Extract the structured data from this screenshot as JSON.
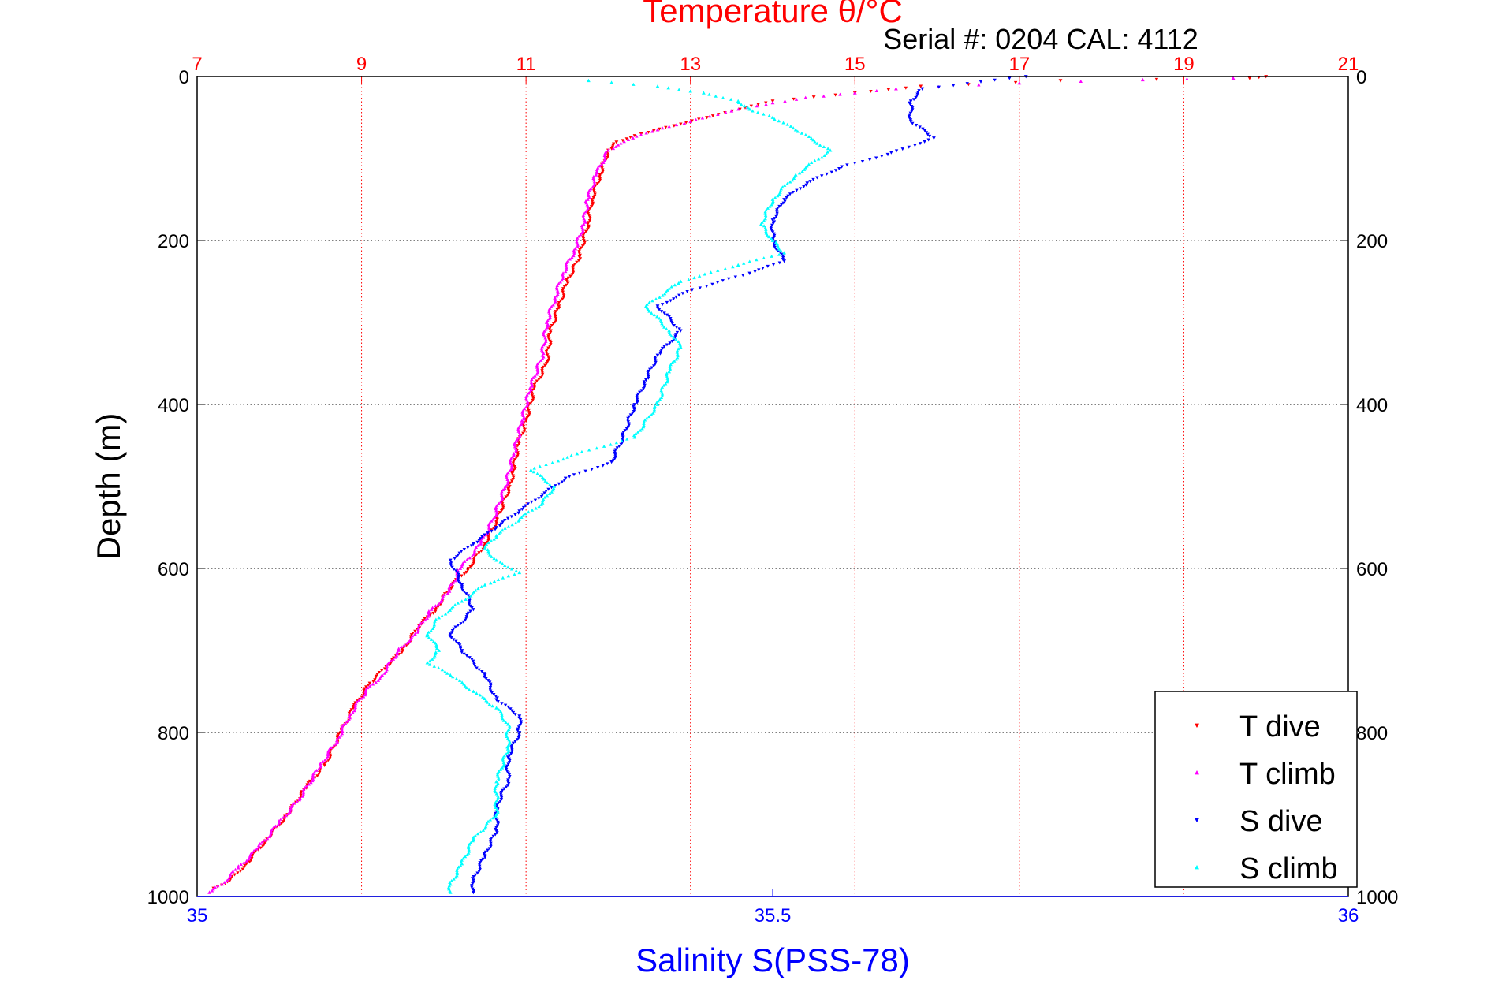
{
  "chart_data": {
    "type": "scatter",
    "title": "Temperature θ/°C",
    "subtitle": "Serial #: 0204  CAL: 4112",
    "ylabel": "Depth (m)",
    "xlabel_bottom": "Salinity S(PSS-78)",
    "ylim": [
      1000,
      0
    ],
    "y_ticks": [
      "0",
      "200",
      "400",
      "600",
      "800",
      "1000"
    ],
    "x_top": {
      "label": "Temperature θ/°C",
      "range": [
        7,
        21
      ],
      "ticks": [
        "7",
        "9",
        "11",
        "13",
        "15",
        "17",
        "19",
        "21"
      ]
    },
    "x_bottom": {
      "label": "Salinity S(PSS-78)",
      "range": [
        35,
        36
      ],
      "ticks": [
        "35",
        "35.5",
        "36"
      ]
    },
    "grid": true,
    "legend": "bottom-right",
    "colors": {
      "t_axis": "#ff0000",
      "s_axis": "#0000ff",
      "grid": "#000000",
      "t_grid": "#ff0000"
    },
    "series": [
      {
        "name": "T dive",
        "axis": "top",
        "color": "#ff0000",
        "marker": "triangle-down",
        "points": [
          [
            20.0,
            0
          ],
          [
            19.8,
            2
          ],
          [
            17.5,
            5
          ],
          [
            15.8,
            12
          ],
          [
            15.0,
            20
          ],
          [
            14.5,
            25
          ],
          [
            14.0,
            30
          ],
          [
            13.6,
            40
          ],
          [
            13.2,
            50
          ],
          [
            12.8,
            60
          ],
          [
            12.4,
            70
          ],
          [
            12.1,
            80
          ],
          [
            12.0,
            90
          ],
          [
            11.9,
            120
          ],
          [
            11.8,
            150
          ],
          [
            11.75,
            180
          ],
          [
            11.7,
            200
          ],
          [
            11.65,
            220
          ],
          [
            11.5,
            250
          ],
          [
            11.4,
            280
          ],
          [
            11.3,
            310
          ],
          [
            11.25,
            350
          ],
          [
            11.1,
            380
          ],
          [
            11.0,
            420
          ],
          [
            10.9,
            450
          ],
          [
            10.85,
            480
          ],
          [
            10.8,
            500
          ],
          [
            10.65,
            540
          ],
          [
            10.5,
            570
          ],
          [
            10.3,
            600
          ],
          [
            10.1,
            620
          ],
          [
            9.9,
            650
          ],
          [
            9.7,
            670
          ],
          [
            9.5,
            700
          ],
          [
            9.3,
            720
          ],
          [
            9.1,
            740
          ],
          [
            8.9,
            770
          ],
          [
            8.75,
            800
          ],
          [
            8.55,
            840
          ],
          [
            8.3,
            870
          ],
          [
            8.1,
            900
          ],
          [
            7.85,
            930
          ],
          [
            7.6,
            960
          ],
          [
            7.4,
            980
          ],
          [
            7.2,
            990
          ]
        ]
      },
      {
        "name": "T climb",
        "axis": "top",
        "color": "#ff00ff",
        "marker": "triangle-up",
        "points": [
          [
            19.6,
            2
          ],
          [
            18.5,
            4
          ],
          [
            17.0,
            8
          ],
          [
            15.5,
            15
          ],
          [
            15.0,
            20
          ],
          [
            14.4,
            26
          ],
          [
            14.0,
            32
          ],
          [
            13.5,
            42
          ],
          [
            13.0,
            55
          ],
          [
            12.6,
            65
          ],
          [
            12.3,
            75
          ],
          [
            12.0,
            90
          ],
          [
            11.85,
            120
          ],
          [
            11.75,
            150
          ],
          [
            11.7,
            180
          ],
          [
            11.6,
            210
          ],
          [
            11.45,
            240
          ],
          [
            11.35,
            270
          ],
          [
            11.25,
            300
          ],
          [
            11.2,
            340
          ],
          [
            11.05,
            380
          ],
          [
            10.95,
            420
          ],
          [
            10.85,
            460
          ],
          [
            10.75,
            500
          ],
          [
            10.6,
            540
          ],
          [
            10.45,
            570
          ],
          [
            10.2,
            600
          ],
          [
            10.05,
            630
          ],
          [
            9.85,
            650
          ],
          [
            9.65,
            680
          ],
          [
            9.45,
            700
          ],
          [
            9.25,
            730
          ],
          [
            9.05,
            750
          ],
          [
            8.85,
            780
          ],
          [
            8.7,
            810
          ],
          [
            8.5,
            840
          ],
          [
            8.25,
            880
          ],
          [
            8.0,
            910
          ],
          [
            7.75,
            940
          ],
          [
            7.5,
            965
          ],
          [
            7.3,
            985
          ],
          [
            7.15,
            995
          ]
        ]
      },
      {
        "name": "S dive",
        "axis": "bottom",
        "color": "#0000ff",
        "marker": "triangle-down",
        "points": [
          [
            35.72,
            0
          ],
          [
            35.63,
            15
          ],
          [
            35.62,
            30
          ],
          [
            35.62,
            55
          ],
          [
            35.64,
            75
          ],
          [
            35.6,
            95
          ],
          [
            35.56,
            110
          ],
          [
            35.53,
            130
          ],
          [
            35.51,
            150
          ],
          [
            35.5,
            175
          ],
          [
            35.5,
            200
          ],
          [
            35.51,
            225
          ],
          [
            35.48,
            240
          ],
          [
            35.43,
            260
          ],
          [
            35.4,
            280
          ],
          [
            35.42,
            310
          ],
          [
            35.4,
            340
          ],
          [
            35.39,
            370
          ],
          [
            35.38,
            400
          ],
          [
            35.37,
            440
          ],
          [
            35.36,
            470
          ],
          [
            35.32,
            490
          ],
          [
            35.3,
            510
          ],
          [
            35.28,
            530
          ],
          [
            35.26,
            550
          ],
          [
            35.24,
            570
          ],
          [
            35.22,
            590
          ],
          [
            35.23,
            620
          ],
          [
            35.24,
            650
          ],
          [
            35.22,
            680
          ],
          [
            35.23,
            700
          ],
          [
            35.25,
            730
          ],
          [
            35.26,
            760
          ],
          [
            35.28,
            780
          ],
          [
            35.28,
            800
          ],
          [
            35.27,
            830
          ],
          [
            35.27,
            860
          ],
          [
            35.26,
            890
          ],
          [
            35.26,
            920
          ],
          [
            35.25,
            950
          ],
          [
            35.24,
            980
          ],
          [
            35.24,
            995
          ]
        ]
      },
      {
        "name": "S climb",
        "axis": "bottom",
        "color": "#00ffff",
        "marker": "triangle-up",
        "points": [
          [
            35.34,
            5
          ],
          [
            35.4,
            12
          ],
          [
            35.44,
            20
          ],
          [
            35.47,
            30
          ],
          [
            35.48,
            40
          ],
          [
            35.5,
            50
          ],
          [
            35.52,
            65
          ],
          [
            35.55,
            90
          ],
          [
            35.52,
            120
          ],
          [
            35.5,
            150
          ],
          [
            35.49,
            180
          ],
          [
            35.5,
            200
          ],
          [
            35.51,
            215
          ],
          [
            35.47,
            230
          ],
          [
            35.42,
            250
          ],
          [
            35.39,
            280
          ],
          [
            35.41,
            310
          ],
          [
            35.42,
            330
          ],
          [
            35.41,
            360
          ],
          [
            35.4,
            400
          ],
          [
            35.38,
            440
          ],
          [
            35.33,
            460
          ],
          [
            35.29,
            480
          ],
          [
            35.31,
            500
          ],
          [
            35.3,
            520
          ],
          [
            35.28,
            540
          ],
          [
            35.26,
            560
          ],
          [
            35.25,
            575
          ],
          [
            35.26,
            590
          ],
          [
            35.28,
            605
          ],
          [
            35.25,
            620
          ],
          [
            35.23,
            640
          ],
          [
            35.21,
            660
          ],
          [
            35.2,
            680
          ],
          [
            35.21,
            700
          ],
          [
            35.2,
            715
          ],
          [
            35.22,
            730
          ],
          [
            35.24,
            750
          ],
          [
            35.26,
            770
          ],
          [
            35.27,
            790
          ],
          [
            35.27,
            820
          ],
          [
            35.26,
            860
          ],
          [
            35.26,
            900
          ],
          [
            35.24,
            930
          ],
          [
            35.23,
            960
          ],
          [
            35.22,
            985
          ],
          [
            35.22,
            995
          ]
        ]
      }
    ]
  }
}
